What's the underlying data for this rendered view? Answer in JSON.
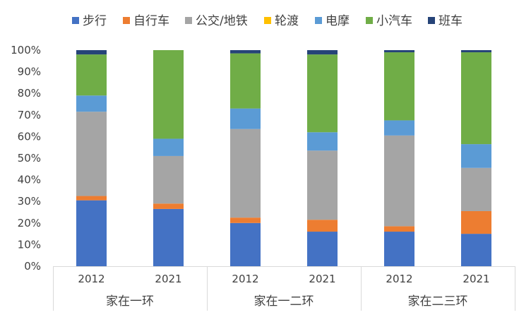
{
  "chart_data": {
    "type": "bar",
    "stacked": "percent",
    "legend_position": "top",
    "gridlines": false,
    "ylim": [
      0,
      100
    ],
    "yticks": [
      "0%",
      "10%",
      "20%",
      "30%",
      "40%",
      "50%",
      "60%",
      "70%",
      "80%",
      "90%",
      "100%"
    ],
    "categories": [
      "2012",
      "2021",
      "2012",
      "2021",
      "2012",
      "2021"
    ],
    "groups": [
      {
        "label": "家在一环",
        "span": 2
      },
      {
        "label": "家在一二环",
        "span": 2
      },
      {
        "label": "家在二三环",
        "span": 2
      }
    ],
    "series": [
      {
        "name": "步行",
        "color": "#4472C4",
        "values": [
          30.5,
          26.5,
          20.0,
          16.0,
          16.0,
          15.0
        ]
      },
      {
        "name": "自行车",
        "color": "#ED7D31",
        "values": [
          2.0,
          2.5,
          2.5,
          5.5,
          2.5,
          10.5
        ]
      },
      {
        "name": "公交/地铁",
        "color": "#A5A5A5",
        "values": [
          39.0,
          22.0,
          41.0,
          32.0,
          42.0,
          20.0
        ]
      },
      {
        "name": "轮渡",
        "color": "#FFC000",
        "values": [
          0,
          0,
          0,
          0,
          0,
          0
        ]
      },
      {
        "name": "电摩",
        "color": "#5B9BD5",
        "values": [
          7.5,
          8.0,
          9.5,
          8.5,
          7.0,
          11.0
        ]
      },
      {
        "name": "小汽车",
        "color": "#70AD47",
        "values": [
          19.0,
          41.0,
          25.5,
          36.0,
          31.5,
          42.5
        ]
      },
      {
        "name": "班车",
        "color": "#264478",
        "values": [
          2.0,
          0,
          1.5,
          2.0,
          1.0,
          1.0
        ]
      }
    ]
  }
}
